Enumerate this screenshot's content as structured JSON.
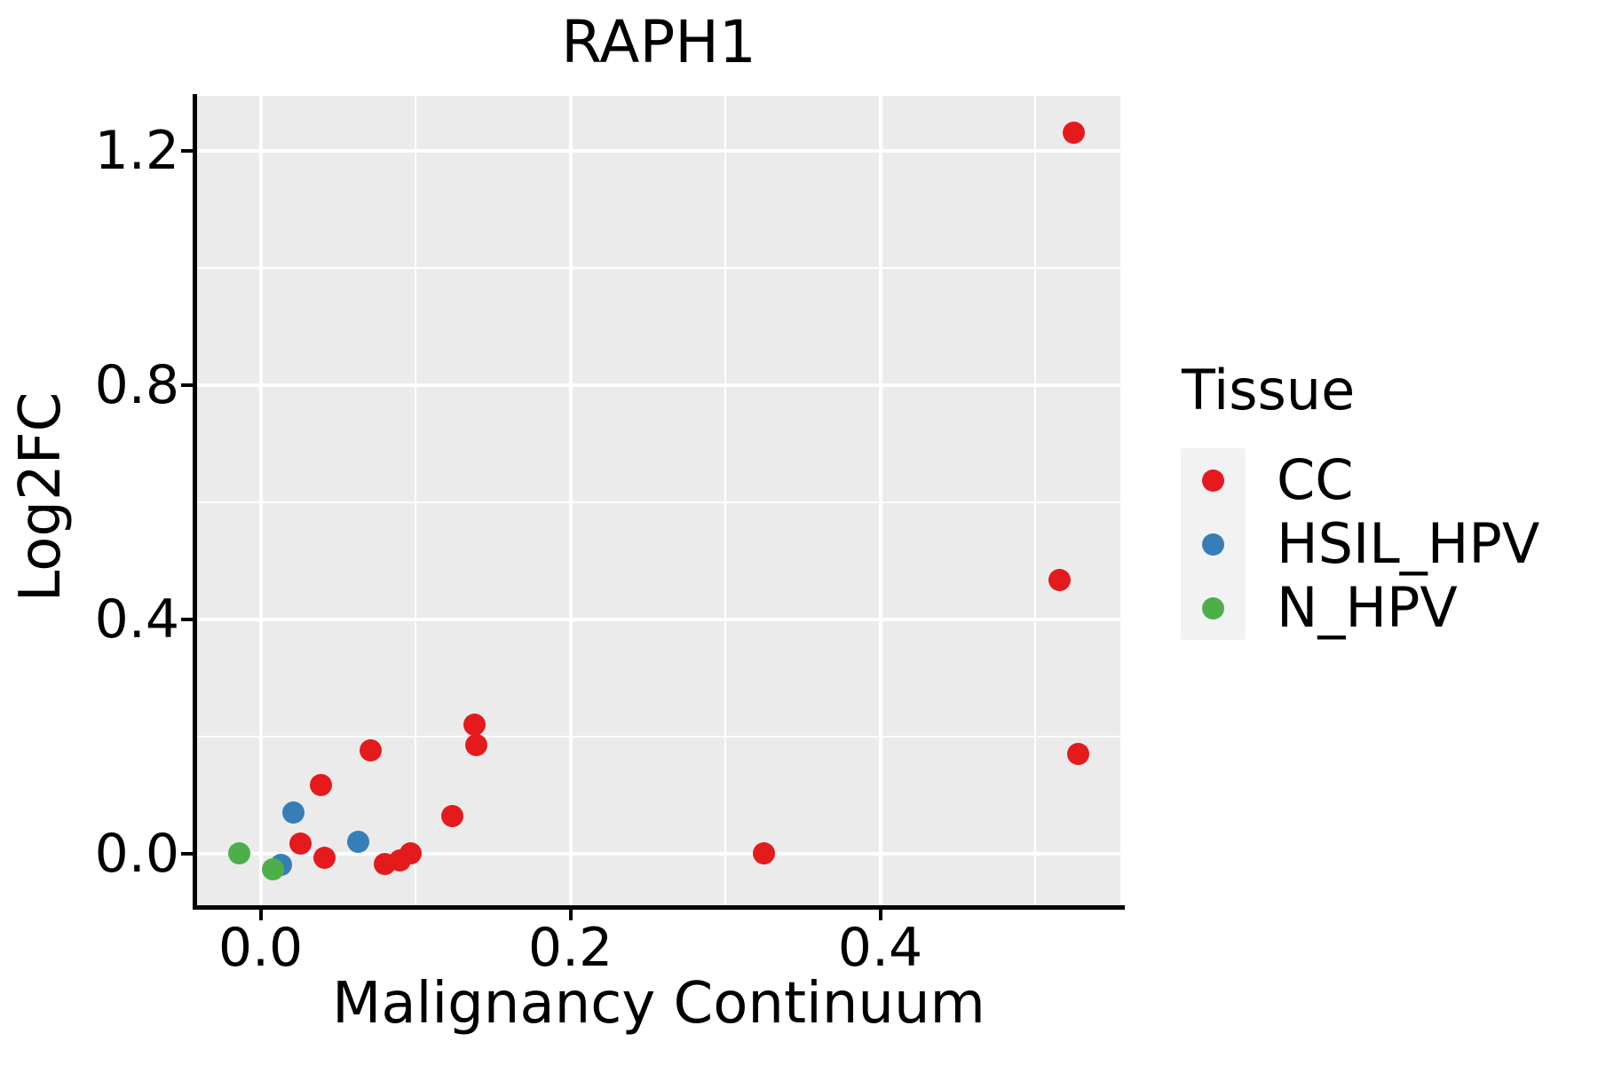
{
  "title": "RAPH1",
  "colors": {
    "CC": "#E41A1C",
    "HSIL_HPV": "#377EB8",
    "N_HPV": "#4DAF4A",
    "panel_background": "#EBEBEB",
    "gridline": "#FFFFFF",
    "axis": "#000000",
    "legend_key_background": "#F2F2F2",
    "text": "#000000"
  },
  "legend": {
    "title": "Tissue",
    "entries": [
      {
        "label": "CC",
        "color_key": "CC"
      },
      {
        "label": "HSIL_HPV",
        "color_key": "HSIL_HPV"
      },
      {
        "label": "N_HPV",
        "color_key": "N_HPV"
      }
    ]
  },
  "chart_data": {
    "type": "scatter",
    "title": "RAPH1",
    "xlabel": "Malignancy Continuum",
    "ylabel": "Log2FC",
    "xlim": [
      -0.041,
      0.555
    ],
    "ylim": [
      -0.088,
      1.294
    ],
    "grid": "on",
    "legend_position": "right",
    "x_ticks": [
      {
        "v": 0.0,
        "label": "0.0"
      },
      {
        "v": 0.2,
        "label": "0.2"
      },
      {
        "v": 0.4,
        "label": "0.4"
      }
    ],
    "y_ticks": [
      {
        "v": 0.0,
        "label": "0.0"
      },
      {
        "v": 0.4,
        "label": "0.4"
      },
      {
        "v": 0.8,
        "label": "0.8"
      },
      {
        "v": 1.2,
        "label": "1.2"
      }
    ],
    "x_minor_gridlines": [
      0.1,
      0.3,
      0.5
    ],
    "y_minor_gridlines": [
      0.2,
      0.6,
      1.0
    ],
    "series": [
      {
        "name": "CC",
        "color": "#E41A1C",
        "points": [
          [
            0.026,
            0.018
          ],
          [
            0.039,
            0.118
          ],
          [
            0.041,
            -0.007
          ],
          [
            0.071,
            0.177
          ],
          [
            0.08,
            -0.018
          ],
          [
            0.09,
            -0.011
          ],
          [
            0.097,
            0.0
          ],
          [
            0.124,
            0.065
          ],
          [
            0.138,
            0.22
          ],
          [
            0.139,
            0.186
          ],
          [
            0.325,
            0.0
          ],
          [
            0.516,
            0.467
          ],
          [
            0.525,
            1.231
          ],
          [
            0.528,
            0.171
          ]
        ]
      },
      {
        "name": "HSIL_HPV",
        "color": "#377EB8",
        "points": [
          [
            0.013,
            -0.019
          ],
          [
            0.021,
            0.07
          ],
          [
            0.063,
            0.021
          ]
        ]
      },
      {
        "name": "N_HPV",
        "color": "#4DAF4A",
        "points": [
          [
            -0.014,
            0.0
          ],
          [
            0.008,
            -0.026
          ]
        ]
      }
    ]
  }
}
